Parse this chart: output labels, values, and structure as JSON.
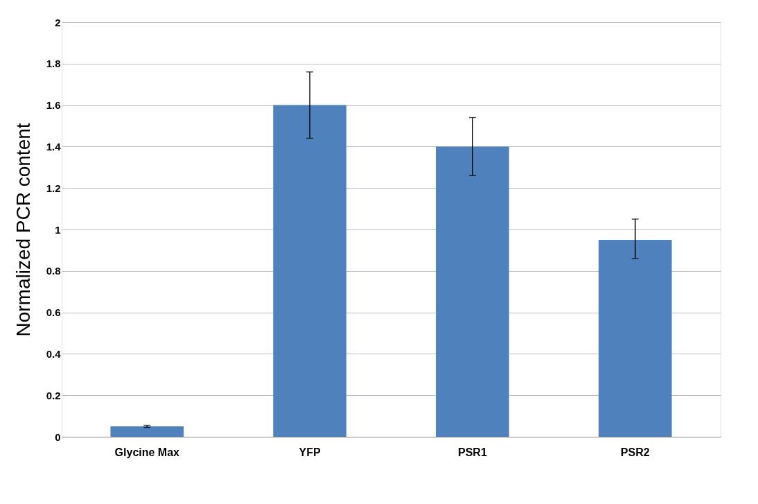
{
  "chart_data": {
    "type": "bar",
    "ylabel": "Normalized PCR content",
    "categories": [
      "Glycine Max",
      "YFP",
      "PSR1",
      "PSR2"
    ],
    "values": [
      0.05,
      1.6,
      1.4,
      0.95
    ],
    "errors": [
      0.005,
      [
        1.44,
        1.76
      ],
      [
        1.26,
        1.54
      ],
      [
        0.86,
        1.05
      ]
    ],
    "color": "#4f81bd",
    "ylim": [
      0,
      2
    ],
    "yticks": [
      0,
      0.2,
      0.4,
      0.6,
      0.8,
      1,
      1.2,
      1.4,
      1.6,
      1.8,
      2
    ],
    "grid": "y"
  }
}
